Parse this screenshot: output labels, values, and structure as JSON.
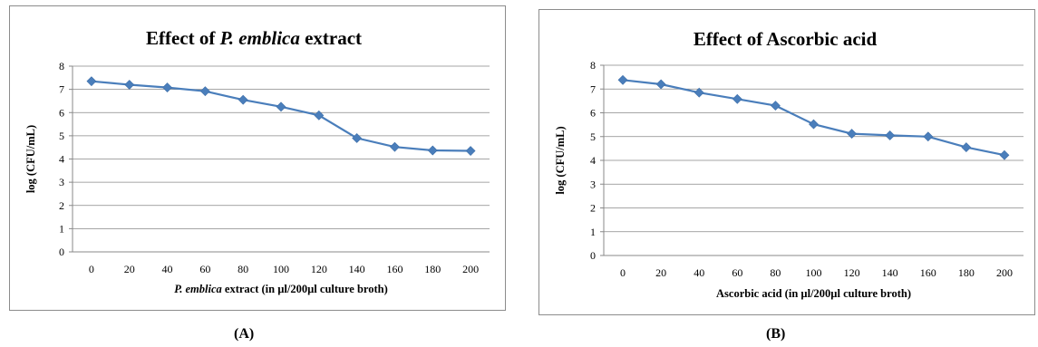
{
  "panels": [
    {
      "caption": "(A)",
      "chart_data": {
        "type": "line",
        "title_parts": [
          "Effect of ",
          "P. emblica",
          " extract"
        ],
        "xlabel_parts": [
          "P. emblica",
          " extract (in µl/200µl culture broth)"
        ],
        "ylabel": "log (CFU/mL)",
        "categories": [
          "0",
          "20",
          "40",
          "60",
          "80",
          "100",
          "120",
          "140",
          "160",
          "180",
          "200"
        ],
        "values": [
          7.35,
          7.2,
          7.08,
          6.92,
          6.55,
          6.25,
          5.88,
          4.9,
          4.52,
          4.37,
          4.35
        ],
        "ylim": [
          0,
          8
        ],
        "yticks": [
          0,
          1,
          2,
          3,
          4,
          5,
          6,
          7,
          8
        ],
        "grid": true,
        "legend": "none",
        "series_color": "#4a7ebb"
      }
    },
    {
      "caption": "(B)",
      "chart_data": {
        "type": "line",
        "title_parts": [
          "Effect of Ascorbic acid"
        ],
        "xlabel_parts": [
          "Ascorbic acid (in µl/200µl culture broth)"
        ],
        "ylabel": "log (CFU/mL)",
        "categories": [
          "0",
          "20",
          "40",
          "60",
          "80",
          "100",
          "120",
          "140",
          "160",
          "180",
          "200"
        ],
        "values": [
          7.38,
          7.2,
          6.85,
          6.58,
          6.3,
          5.52,
          5.12,
          5.05,
          5.0,
          4.55,
          4.22
        ],
        "ylim": [
          0,
          8
        ],
        "yticks": [
          0,
          1,
          2,
          3,
          4,
          5,
          6,
          7,
          8
        ],
        "grid": true,
        "legend": "none",
        "series_color": "#4a7ebb"
      }
    }
  ]
}
